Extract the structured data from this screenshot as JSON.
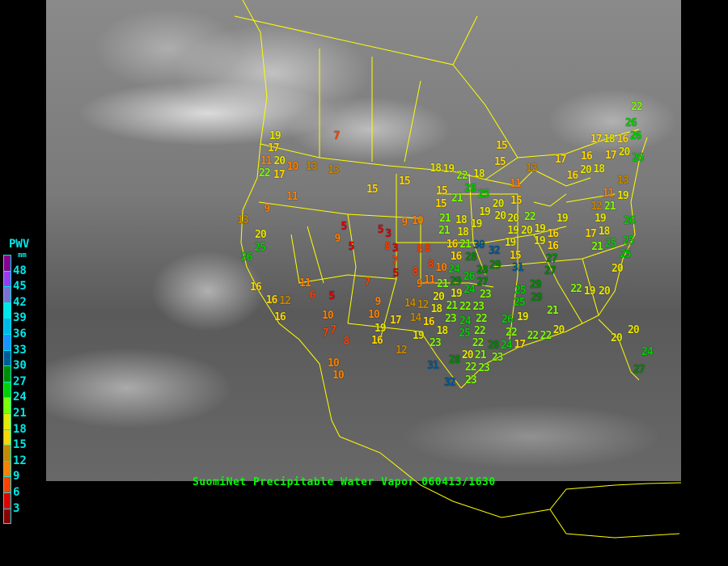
{
  "caption": "SuomiNet Precipitable Water Vapor 060413/1630",
  "legend": {
    "title": "PWV",
    "unit": "mm",
    "labels": [
      "48",
      "45",
      "42",
      "39",
      "36",
      "33",
      "30",
      "27",
      "24",
      "21",
      "18",
      "15",
      "12",
      "9",
      "6",
      "3"
    ],
    "colors": [
      "#8b008b",
      "#9a3cf0",
      "#8070d0",
      "#00e8e8",
      "#00b8e8",
      "#1e90ff",
      "#005a96",
      "#008c00",
      "#00d000",
      "#80ff00",
      "#e8e800",
      "#ffd700",
      "#c88800",
      "#ff8000",
      "#ff4000",
      "#e00000",
      "#8b0000"
    ]
  },
  "map": {
    "background": "infrared satellite imagery",
    "border_color": "#ffff00",
    "station_values": [
      7,
      19,
      17,
      11,
      20,
      22,
      17,
      10,
      13,
      13,
      11,
      9,
      13,
      20,
      25,
      26,
      16,
      16,
      12,
      16,
      11,
      6,
      5,
      10,
      7,
      7,
      8,
      10,
      5,
      9,
      5,
      15,
      15,
      5,
      3,
      8,
      3,
      7,
      5,
      7,
      9,
      10,
      17,
      19,
      16,
      12,
      9,
      10,
      15,
      19,
      8,
      21,
      16,
      30,
      32,
      15,
      21,
      8,
      8,
      10,
      11,
      16,
      28,
      29,
      31,
      27,
      8,
      9,
      25,
      29,
      21,
      19,
      20,
      16,
      19,
      19,
      20,
      18,
      14,
      12,
      18,
      23,
      21,
      22,
      23,
      20,
      19,
      16,
      14,
      18,
      19,
      23,
      24,
      22,
      25,
      22,
      26,
      22,
      17,
      22,
      22,
      22,
      20,
      21,
      28,
      24,
      23,
      23,
      28,
      31,
      22,
      32,
      23,
      24,
      26,
      27,
      24,
      23,
      21,
      29,
      28,
      22,
      26,
      26,
      17,
      18,
      16,
      20,
      17,
      26,
      15,
      15,
      17,
      13,
      11,
      16,
      16,
      20,
      18,
      13,
      18,
      22,
      18,
      26,
      25,
      21,
      15,
      20,
      15,
      19,
      20,
      22,
      21,
      18,
      19,
      19,
      11,
      19,
      12,
      21,
      26,
      19,
      18,
      17,
      20,
      19,
      16,
      19,
      21,
      25,
      25,
      25,
      20,
      22,
      19,
      20,
      25,
      29,
      27,
      20,
      20,
      24,
      27,
      10
    ]
  }
}
